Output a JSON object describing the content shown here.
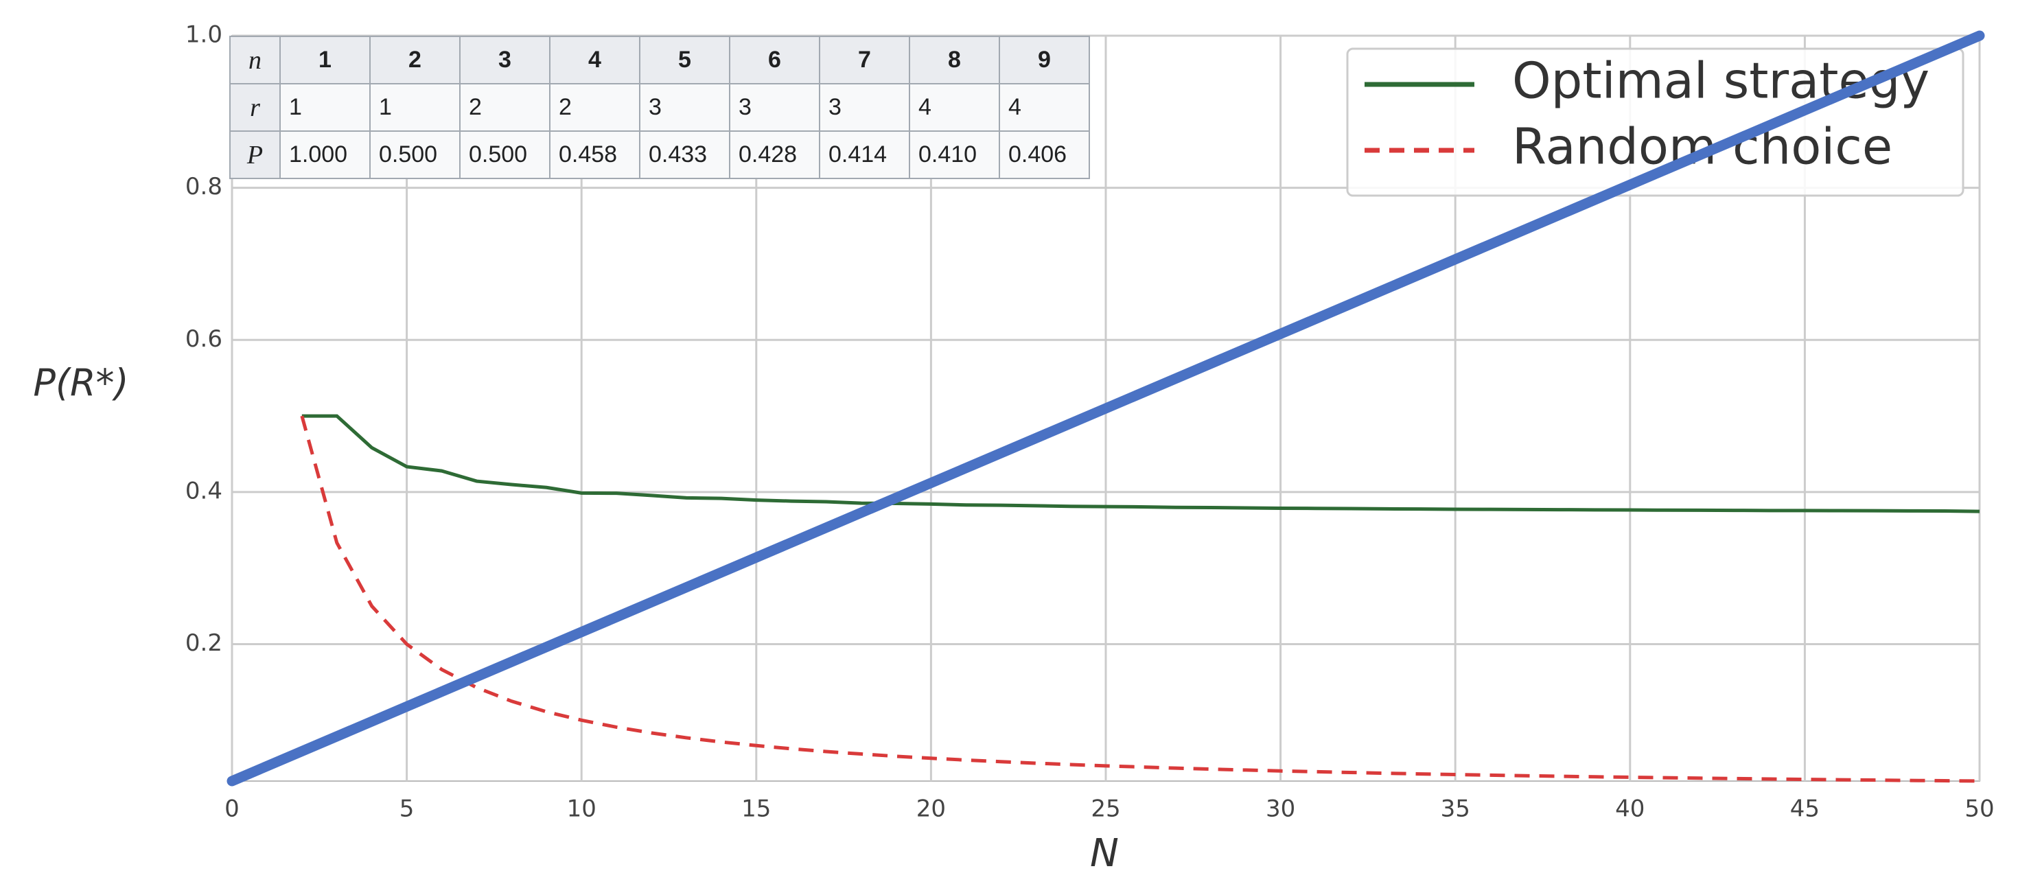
{
  "chart_data": {
    "type": "line",
    "y_label": "P(R*)",
    "x_label": "N",
    "xlim": [
      0,
      50
    ],
    "xticks": [
      0,
      5,
      10,
      15,
      20,
      25,
      30,
      35,
      40,
      45,
      50
    ],
    "ylim": [
      0.02,
      1.0
    ],
    "yticks": [
      0.2,
      0.4,
      0.6,
      0.8,
      {
        "value": 1,
        "label": "1.0"
      }
    ],
    "grid": true,
    "legend": "upper right",
    "series": [
      {
        "name": "Optimal strategy",
        "color": "#2e6b35",
        "style": "solid",
        "x": [
          2,
          3,
          4,
          5,
          6,
          7,
          8,
          9,
          10,
          11,
          12,
          13,
          14,
          15,
          16,
          17,
          18,
          19,
          20,
          21,
          22,
          23,
          24,
          25,
          26,
          27,
          28,
          29,
          30,
          31,
          32,
          33,
          34,
          35,
          36,
          37,
          38,
          39,
          40,
          41,
          42,
          43,
          44,
          45,
          46,
          47,
          48,
          49,
          50
        ],
        "values": [
          0.5,
          0.5,
          0.4583,
          0.4333,
          0.4278,
          0.4143,
          0.4098,
          0.406,
          0.3987,
          0.3984,
          0.3955,
          0.3923,
          0.3917,
          0.3894,
          0.3881,
          0.3873,
          0.3854,
          0.385,
          0.3842,
          0.383,
          0.3827,
          0.382,
          0.3812,
          0.3809,
          0.3805,
          0.3798,
          0.3796,
          0.3792,
          0.3787,
          0.3785,
          0.3782,
          0.3779,
          0.3777,
          0.3774,
          0.3772,
          0.377,
          0.3768,
          0.3766,
          0.3764,
          0.3762,
          0.3761,
          0.3759,
          0.3757,
          0.3756,
          0.3755,
          0.3754,
          0.3752,
          0.3751,
          0.3745
        ]
      },
      {
        "name": "Random choice",
        "color": "#d93a3a",
        "style": "dashed",
        "x": [
          2,
          3,
          4,
          5,
          6,
          7,
          8,
          9,
          10,
          11,
          12,
          13,
          14,
          15,
          16,
          17,
          18,
          19,
          20,
          21,
          22,
          23,
          24,
          25,
          26,
          27,
          28,
          29,
          30,
          31,
          32,
          33,
          34,
          35,
          36,
          37,
          38,
          39,
          40,
          41,
          42,
          43,
          44,
          45,
          46,
          47,
          48,
          49,
          50
        ],
        "values": [
          0.5,
          0.3333,
          0.25,
          0.2,
          0.1667,
          0.1429,
          0.125,
          0.1111,
          0.1,
          0.0909,
          0.0833,
          0.0769,
          0.0714,
          0.0667,
          0.0625,
          0.0588,
          0.0556,
          0.0526,
          0.05,
          0.0476,
          0.0455,
          0.0435,
          0.0417,
          0.04,
          0.0385,
          0.037,
          0.0357,
          0.0345,
          0.0333,
          0.0323,
          0.0313,
          0.0303,
          0.0294,
          0.0286,
          0.0278,
          0.027,
          0.0263,
          0.0256,
          0.025,
          0.0244,
          0.0238,
          0.0233,
          0.0227,
          0.0222,
          0.0217,
          0.0213,
          0.0208,
          0.0204,
          0.02
        ]
      },
      {
        "color": "#4a72c4",
        "style": "thick",
        "x": [
          0,
          50
        ],
        "values": [
          0.02,
          1.0
        ]
      }
    ],
    "table": {
      "header": [
        "n",
        "1",
        "2",
        "3",
        "4",
        "5",
        "6",
        "7",
        "8",
        "9"
      ],
      "rows": [
        [
          "r",
          "1",
          "1",
          "2",
          "2",
          "3",
          "3",
          "3",
          "4",
          "4"
        ],
        [
          "P",
          "1.000",
          "0.500",
          "0.500",
          "0.458",
          "0.433",
          "0.428",
          "0.414",
          "0.410",
          "0.406"
        ]
      ]
    }
  }
}
